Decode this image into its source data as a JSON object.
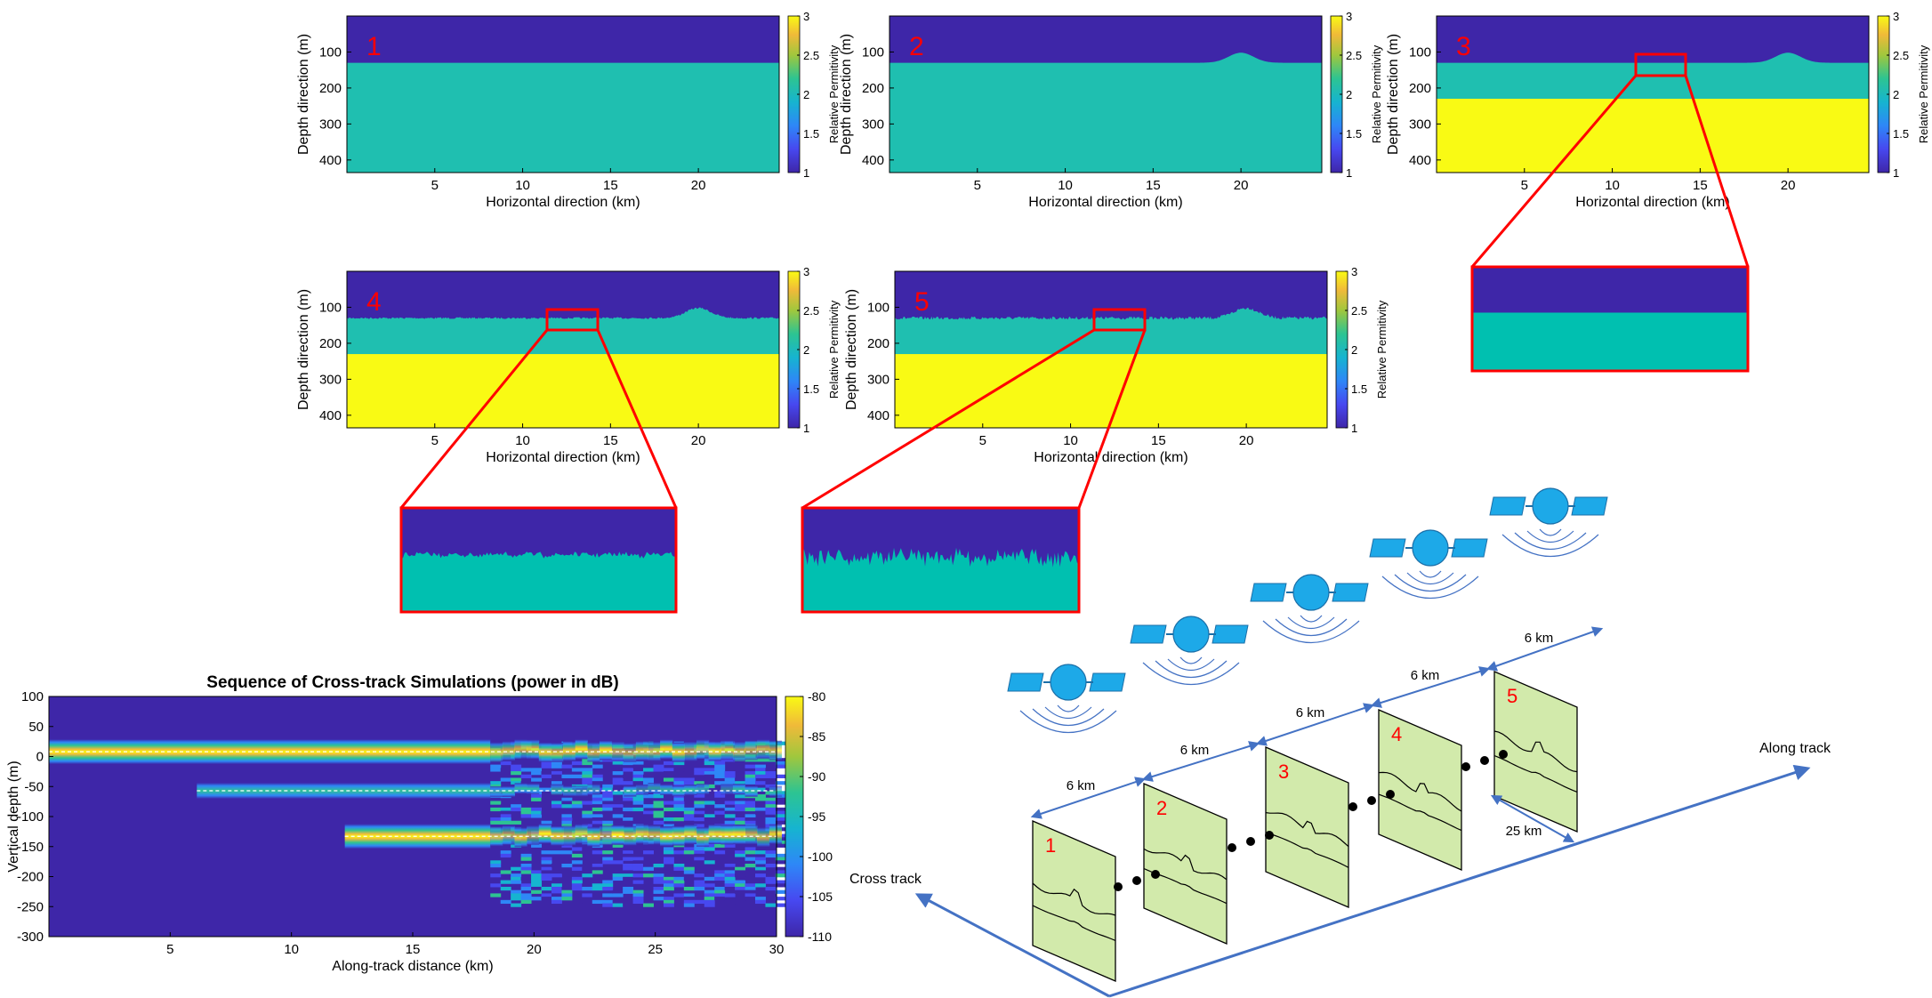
{
  "colors": {
    "purple": "#3e26a8",
    "teal": "#1fbfb0",
    "yellow": "#f9fa14",
    "red": "#ff0000",
    "blue": "#4472c4",
    "sat": "#1da9e8",
    "panel_fill": "#d2eaab"
  },
  "permittivity_panels": [
    {
      "label": "1",
      "ylabel": "Depth direction (m)",
      "xlabel": "Horizontal direction (km)",
      "cbar_label": "Relative Permitivity",
      "has_bump": false,
      "has_layer": false,
      "rough": 0
    },
    {
      "label": "2",
      "ylabel": "Depth direction (m)",
      "xlabel": "Horizontal direction (km)",
      "cbar_label": "Relative Permitivity",
      "has_bump": true,
      "has_layer": false,
      "rough": 0
    },
    {
      "label": "3",
      "ylabel": "Depth direction (m)",
      "xlabel": "Horizontal direction (km)",
      "cbar_label": "Relative Permitivity",
      "has_bump": true,
      "has_layer": true,
      "rough": 0
    },
    {
      "label": "4",
      "ylabel": "Depth direction (m)",
      "xlabel": "Horizontal direction (km)",
      "cbar_label": "Relative Permitivity",
      "has_bump": true,
      "has_layer": true,
      "rough": 1
    },
    {
      "label": "5",
      "ylabel": "Depth direction (m)",
      "xlabel": "Horizontal direction (km)",
      "cbar_label": "Relative Permitivity",
      "has_bump": true,
      "has_layer": true,
      "rough": 2
    }
  ],
  "perm_axes": {
    "xticks": [
      "5",
      "10",
      "15",
      "20"
    ],
    "xtick_values": [
      5,
      10,
      15,
      20
    ],
    "xlim": [
      0,
      24.6
    ],
    "yticks": [
      "100",
      "200",
      "300",
      "400"
    ],
    "ytick_values": [
      100,
      200,
      300,
      400
    ],
    "ylim": [
      0,
      435
    ],
    "cbar_ticks": [
      "3",
      "2.5",
      "2",
      "1.5",
      "1"
    ],
    "cbar_values": [
      3,
      2.5,
      2,
      1.5,
      1
    ]
  },
  "chart_data": {
    "type": "heatmap",
    "title": "Sequence of Cross-track Simulations (power in dB)",
    "xlabel": "Along-track distance (km)",
    "ylabel": "Vertical depth (m)",
    "xlim": [
      0,
      30
    ],
    "ylim": [
      -300,
      100
    ],
    "xticks": [
      "5",
      "10",
      "15",
      "20",
      "25",
      "30"
    ],
    "xtick_values": [
      5,
      10,
      15,
      20,
      25,
      30
    ],
    "yticks": [
      "100",
      "50",
      "0",
      "-50",
      "-100",
      "-150",
      "-200",
      "-250",
      "-300"
    ],
    "ytick_values": [
      100,
      50,
      0,
      -50,
      -100,
      -150,
      -200,
      -250,
      -300
    ],
    "cbar_ticks": [
      "-80",
      "-85",
      "-90",
      "-95",
      "-100",
      "-105",
      "-110"
    ],
    "cbar_values": [
      -80,
      -85,
      -90,
      -95,
      -100,
      -105,
      -110
    ],
    "reflectors": [
      {
        "depth": 8,
        "x_start": 0,
        "x_end": 30
      },
      {
        "depth": -57,
        "x_start": 6.1,
        "x_end": 30
      },
      {
        "depth": -133,
        "x_start": 12.2,
        "x_end": 30
      }
    ]
  },
  "diagram": {
    "spacing_labels": [
      "6 km",
      "6 km",
      "6 km",
      "6 km",
      "6 km"
    ],
    "width_label": "25 km",
    "along_track": "Along track",
    "cross_track": "Cross track",
    "panel_labels": [
      "1",
      "2",
      "3",
      "4",
      "5"
    ]
  }
}
